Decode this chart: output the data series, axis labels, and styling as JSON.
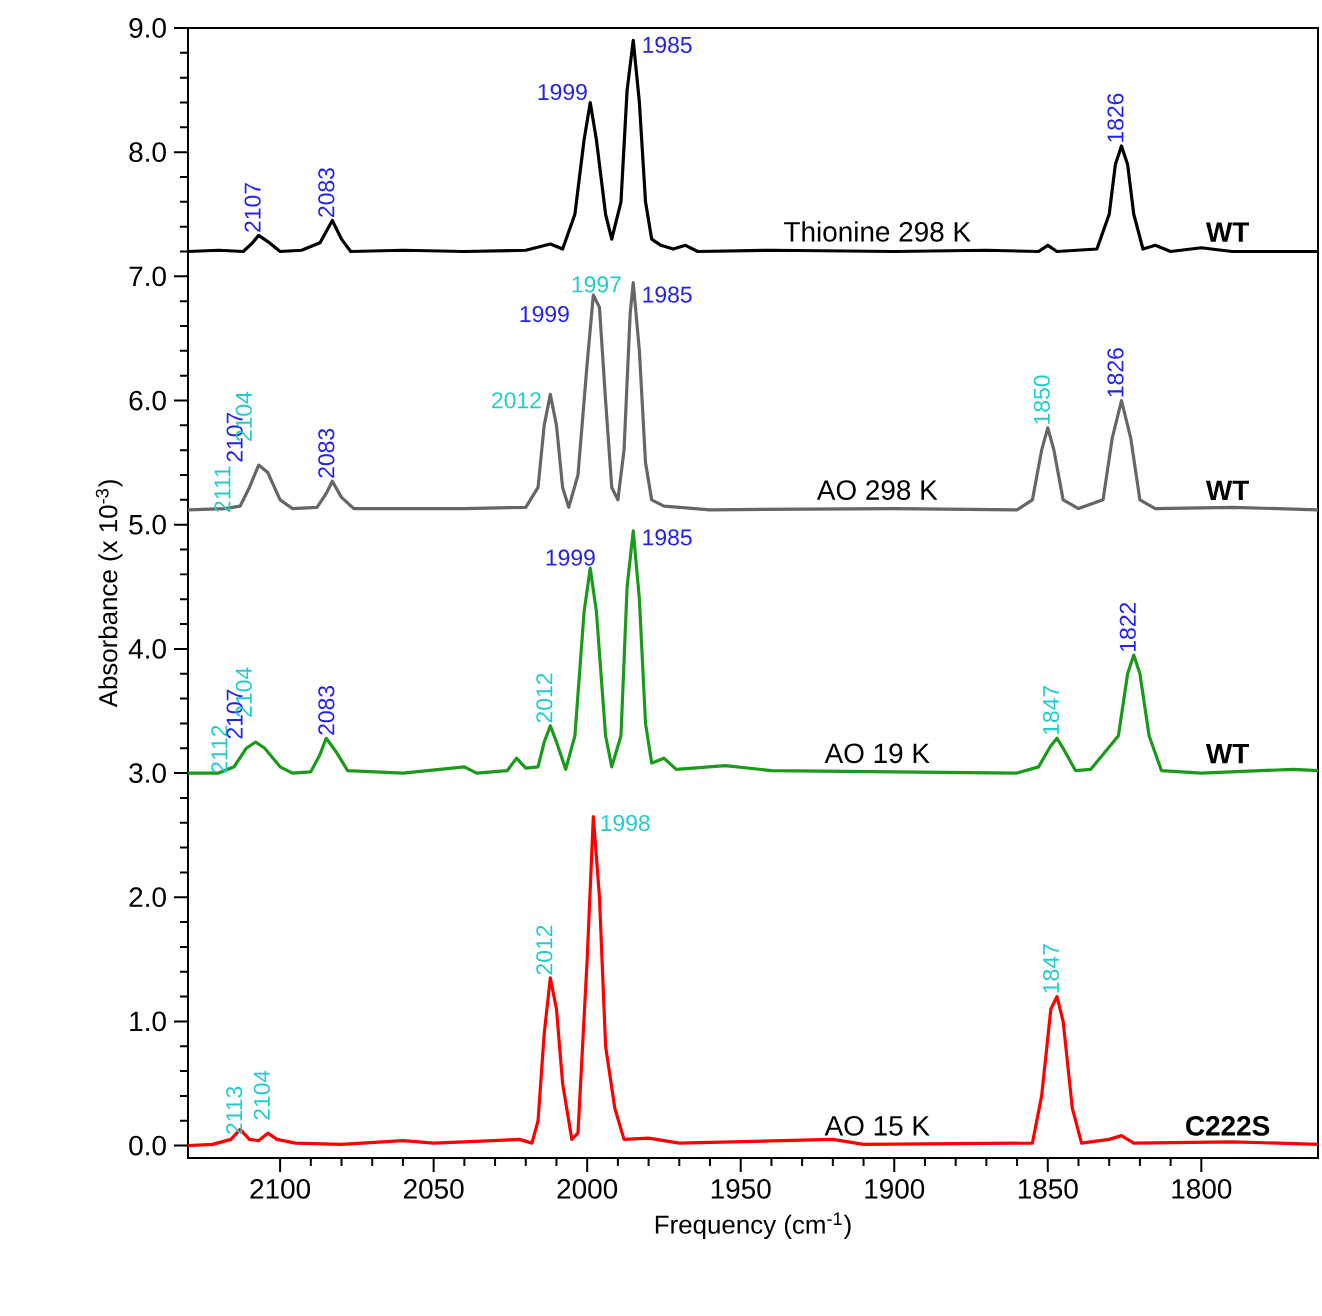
{
  "chart_data": {
    "type": "line",
    "xlabel": "Frequency (cm$^{-1}$)",
    "ylabel": "Absorbance (x 10$^{-3}$)",
    "xlim": [
      2130,
      1762
    ],
    "ylim": [
      -0.1,
      9.0
    ],
    "xticks": [
      2100,
      2050,
      2000,
      1950,
      1900,
      1850,
      1800
    ],
    "yticks": [
      {
        "value": 0,
        "label": "0.0"
      },
      {
        "value": 1,
        "label": "1.0"
      },
      {
        "value": 2,
        "label": "2.0"
      },
      {
        "value": 3,
        "label": "3.0"
      },
      {
        "value": 4,
        "label": "4.0"
      },
      {
        "value": 5,
        "label": "5.0"
      },
      {
        "value": 6,
        "label": "6.0"
      },
      {
        "value": 7,
        "label": "7.0"
      },
      {
        "value": 8,
        "label": "8.0"
      },
      {
        "value": 9,
        "label": "9.0"
      }
    ],
    "series": [
      {
        "name": "Thionine 298 K",
        "color": "#000000",
        "x": [
          2130,
          2120,
          2112,
          2109,
          2107,
          2104,
          2100,
          2093,
          2087,
          2083,
          2080,
          2077,
          2060,
          2040,
          2020,
          2012,
          2008,
          2004,
          2001,
          1999,
          1997,
          1994,
          1992,
          1989,
          1987,
          1985,
          1983,
          1981,
          1979,
          1976,
          1972,
          1968,
          1964,
          1940,
          1900,
          1870,
          1853,
          1850,
          1847,
          1834,
          1830,
          1828,
          1826,
          1824,
          1822,
          1819,
          1815,
          1810,
          1800,
          1790,
          1762
        ],
        "values": [
          7.2,
          7.21,
          7.2,
          7.27,
          7.33,
          7.28,
          7.2,
          7.21,
          7.27,
          7.45,
          7.3,
          7.2,
          7.21,
          7.2,
          7.21,
          7.26,
          7.22,
          7.5,
          8.1,
          8.4,
          8.1,
          7.5,
          7.3,
          7.6,
          8.5,
          8.9,
          8.4,
          7.6,
          7.3,
          7.25,
          7.22,
          7.25,
          7.2,
          7.21,
          7.2,
          7.21,
          7.2,
          7.25,
          7.2,
          7.22,
          7.5,
          7.9,
          8.05,
          7.9,
          7.5,
          7.22,
          7.25,
          7.2,
          7.23,
          7.2,
          7.2
        ]
      },
      {
        "name": "AO 298 K",
        "color": "#666666",
        "x": [
          2130,
          2118,
          2113,
          2110,
          2107,
          2104,
          2100,
          2096,
          2088,
          2085,
          2083,
          2080,
          2076,
          2040,
          2020,
          2016,
          2014,
          2012,
          2010,
          2008,
          2006,
          2003,
          2000,
          1998,
          1996,
          1994,
          1992,
          1990,
          1988,
          1986,
          1985,
          1983,
          1981,
          1979,
          1975,
          1960,
          1900,
          1860,
          1855,
          1852,
          1850,
          1848,
          1845,
          1840,
          1832,
          1829,
          1826,
          1823,
          1820,
          1815,
          1790,
          1762
        ],
        "values": [
          5.12,
          5.13,
          5.15,
          5.3,
          5.48,
          5.42,
          5.2,
          5.13,
          5.14,
          5.25,
          5.35,
          5.22,
          5.13,
          5.13,
          5.14,
          5.3,
          5.8,
          6.05,
          5.8,
          5.3,
          5.14,
          5.4,
          6.3,
          6.85,
          6.75,
          6.0,
          5.3,
          5.2,
          5.6,
          6.7,
          6.95,
          6.4,
          5.5,
          5.2,
          5.15,
          5.12,
          5.13,
          5.12,
          5.2,
          5.6,
          5.78,
          5.6,
          5.2,
          5.13,
          5.2,
          5.7,
          6.0,
          5.7,
          5.2,
          5.13,
          5.14,
          5.12
        ]
      },
      {
        "name": "AO 19 K",
        "color": "#1a9a1a",
        "x": [
          2130,
          2120,
          2115,
          2111,
          2108,
          2105,
          2100,
          2096,
          2090,
          2087,
          2085,
          2082,
          2078,
          2060,
          2040,
          2036,
          2026,
          2023,
          2020,
          2016,
          2014,
          2012,
          2010,
          2007,
          2004,
          2001,
          1999,
          1997,
          1994,
          1992,
          1989,
          1987,
          1985,
          1983,
          1981,
          1979,
          1975,
          1971,
          1955,
          1940,
          1900,
          1860,
          1853,
          1849,
          1847,
          1845,
          1841,
          1836,
          1827,
          1824,
          1822,
          1820,
          1817,
          1813,
          1800,
          1770,
          1762
        ],
        "values": [
          3.0,
          3.0,
          3.05,
          3.2,
          3.25,
          3.2,
          3.05,
          3.0,
          3.01,
          3.15,
          3.28,
          3.18,
          3.02,
          3.0,
          3.05,
          3.0,
          3.02,
          3.12,
          3.04,
          3.05,
          3.25,
          3.38,
          3.25,
          3.03,
          3.3,
          4.3,
          4.65,
          4.3,
          3.3,
          3.05,
          3.3,
          4.5,
          4.95,
          4.4,
          3.4,
          3.08,
          3.12,
          3.03,
          3.06,
          3.02,
          3.01,
          3.0,
          3.05,
          3.22,
          3.28,
          3.2,
          3.02,
          3.03,
          3.3,
          3.8,
          3.95,
          3.8,
          3.3,
          3.02,
          3.0,
          3.03,
          3.02
        ]
      },
      {
        "name": "AO 15 K",
        "color": "#ff0000",
        "x": [
          2130,
          2122,
          2116,
          2113,
          2110,
          2107,
          2104,
          2101,
          2095,
          2080,
          2060,
          2050,
          2040,
          2022,
          2018,
          2016,
          2014,
          2012,
          2010,
          2008,
          2005,
          2003,
          2000,
          1998,
          1996,
          1994,
          1991,
          1988,
          1980,
          1970,
          1920,
          1910,
          1855,
          1852,
          1849,
          1847,
          1845,
          1842,
          1839,
          1830,
          1826,
          1822,
          1790,
          1762
        ],
        "values": [
          0.0,
          0.01,
          0.05,
          0.13,
          0.05,
          0.04,
          0.1,
          0.05,
          0.02,
          0.01,
          0.04,
          0.02,
          0.03,
          0.05,
          0.02,
          0.2,
          0.9,
          1.35,
          1.1,
          0.5,
          0.05,
          0.1,
          1.5,
          2.65,
          2.0,
          0.8,
          0.3,
          0.05,
          0.06,
          0.02,
          0.05,
          0.01,
          0.02,
          0.4,
          1.1,
          1.2,
          1.0,
          0.3,
          0.02,
          0.05,
          0.08,
          0.02,
          0.03,
          0.01
        ]
      }
    ],
    "annotations": [
      {
        "text": "2107",
        "x": 2107,
        "y": 7.33
      },
      {
        "text": "2083",
        "x": 2083,
        "y": 7.45
      },
      {
        "text": "1999",
        "x": 1999,
        "y": 8.4
      },
      {
        "text": "1985",
        "x": 1985,
        "y": 8.9
      },
      {
        "text": "1826",
        "x": 1826,
        "y": 8.05
      },
      {
        "text": "2111",
        "x": 2111,
        "y": 5.3
      },
      {
        "text": "2107",
        "x": 2107,
        "y": 5.48
      },
      {
        "text": "2104",
        "x": 2104,
        "y": 5.42
      },
      {
        "text": "2083",
        "x": 2083,
        "y": 5.35
      },
      {
        "text": "2012",
        "x": 2012,
        "y": 6.05
      },
      {
        "text": "1999",
        "x": 1999,
        "y": 6.6
      },
      {
        "text": "1997",
        "x": 1997,
        "y": 6.85
      },
      {
        "text": "1985",
        "x": 1985,
        "y": 6.95
      },
      {
        "text": "1850",
        "x": 1850,
        "y": 5.78
      },
      {
        "text": "1826",
        "x": 1826,
        "y": 6.0
      },
      {
        "text": "2112",
        "x": 2112,
        "y": 3.2
      },
      {
        "text": "2107",
        "x": 2107,
        "y": 3.25
      },
      {
        "text": "2104",
        "x": 2104,
        "y": 3.2
      },
      {
        "text": "2083",
        "x": 2083,
        "y": 3.28
      },
      {
        "text": "2012",
        "x": 2012,
        "y": 3.38
      },
      {
        "text": "1999",
        "x": 1999,
        "y": 4.65
      },
      {
        "text": "1985",
        "x": 1985,
        "y": 4.95
      },
      {
        "text": "1847",
        "x": 1847,
        "y": 3.28
      },
      {
        "text": "1822",
        "x": 1822,
        "y": 3.95
      },
      {
        "text": "2113",
        "x": 2113,
        "y": 0.13
      },
      {
        "text": "2104",
        "x": 2104,
        "y": 0.1
      },
      {
        "text": "2012",
        "x": 2012,
        "y": 1.35
      },
      {
        "text": "1998",
        "x": 1998,
        "y": 2.65
      },
      {
        "text": "1847",
        "x": 1847,
        "y": 1.2
      },
      "WT",
      "WT",
      "WT",
      "C222S"
    ]
  }
}
